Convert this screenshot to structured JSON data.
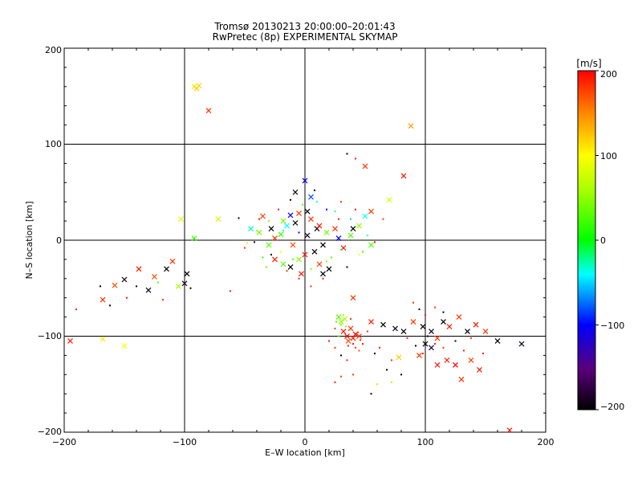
{
  "chart_data": {
    "type": "scatter",
    "title": "Tromsø 20130213 20:00:00–20:01:43",
    "subtitle": "RwPretec (8p) EXPERIMENTAL SKYMAP",
    "xlabel": "E–W location [km]",
    "ylabel": "N–S location [km]",
    "xlim": [
      -200,
      200
    ],
    "ylim": [
      -200,
      200
    ],
    "xticks": [
      "−200",
      "−100",
      "0",
      "100",
      "200"
    ],
    "yticks": [
      "−200",
      "−100",
      "0",
      "100",
      "200"
    ],
    "grid": true,
    "colorbar": {
      "unit": "[m/s]",
      "range": [
        -200,
        200
      ],
      "ticks": [
        "200",
        "100",
        "0",
        "−100",
        "−200"
      ]
    },
    "points": [
      [
        -92,
        160,
        110,
        "x"
      ],
      [
        -90,
        158,
        120,
        "x"
      ],
      [
        -88,
        161,
        115,
        "x"
      ],
      [
        -80,
        135,
        180,
        "x"
      ],
      [
        88,
        119,
        140,
        "x"
      ],
      [
        50,
        77,
        180,
        "x"
      ],
      [
        82,
        67,
        190,
        "x"
      ],
      [
        40,
        -60,
        180,
        "x"
      ],
      [
        78,
        -122,
        120,
        "x"
      ],
      [
        170,
        -198,
        190,
        "x"
      ],
      [
        -195,
        -105,
        190,
        "x"
      ],
      [
        -168,
        -62,
        180,
        "x"
      ],
      [
        -158,
        -47,
        170,
        "x"
      ],
      [
        -150,
        -41,
        -200,
        "x"
      ],
      [
        -138,
        -30,
        190,
        "x"
      ],
      [
        -130,
        -52,
        -190,
        "x"
      ],
      [
        -125,
        -38,
        170,
        "x"
      ],
      [
        -115,
        -30,
        -200,
        "x"
      ],
      [
        -110,
        -22,
        180,
        "x"
      ],
      [
        -100,
        -45,
        -180,
        "x"
      ],
      [
        -98,
        -35,
        -200,
        "x"
      ],
      [
        -105,
        -48,
        60,
        "x"
      ],
      [
        -103,
        22,
        90,
        "x"
      ],
      [
        -92,
        2,
        20,
        "x"
      ],
      [
        -72,
        22,
        80,
        "x"
      ],
      [
        -168,
        -103,
        110,
        "x"
      ],
      [
        -150,
        -110,
        100,
        "x"
      ],
      [
        -45,
        12,
        -30,
        "x"
      ],
      [
        -38,
        8,
        40,
        "x"
      ],
      [
        -30,
        -5,
        30,
        "x"
      ],
      [
        -25,
        2,
        180,
        "x"
      ],
      [
        -20,
        6,
        20,
        "x"
      ],
      [
        -15,
        15,
        -40,
        "x"
      ],
      [
        -10,
        -5,
        170,
        "x"
      ],
      [
        -8,
        18,
        -200,
        "x"
      ],
      [
        -5,
        -20,
        50,
        "x"
      ],
      [
        0,
        -15,
        190,
        "x"
      ],
      [
        2,
        5,
        -190,
        "x"
      ],
      [
        5,
        22,
        180,
        "x"
      ],
      [
        8,
        -12,
        -200,
        "x"
      ],
      [
        10,
        12,
        -190,
        "x"
      ],
      [
        12,
        -25,
        180,
        "x"
      ],
      [
        15,
        -5,
        -200,
        "x"
      ],
      [
        18,
        8,
        40,
        "x"
      ],
      [
        20,
        -30,
        -200,
        "x"
      ],
      [
        0,
        62,
        -100,
        "x"
      ],
      [
        5,
        45,
        -80,
        "x"
      ],
      [
        -8,
        50,
        -200,
        "x"
      ],
      [
        -5,
        28,
        180,
        "x"
      ],
      [
        2,
        30,
        -200,
        "x"
      ],
      [
        30,
        -85,
        50,
        "x"
      ],
      [
        32,
        -95,
        190,
        "x"
      ],
      [
        35,
        -100,
        200,
        "x"
      ],
      [
        38,
        -92,
        180,
        "x"
      ],
      [
        40,
        -102,
        190,
        "x"
      ],
      [
        28,
        -80,
        30,
        "x"
      ],
      [
        33,
        -82,
        60,
        "x"
      ],
      [
        36,
        -105,
        170,
        "x"
      ],
      [
        42,
        -98,
        200,
        "x"
      ],
      [
        45,
        -100,
        180,
        "x"
      ],
      [
        55,
        -85,
        190,
        "x"
      ],
      [
        65,
        -88,
        -200,
        "x"
      ],
      [
        75,
        -92,
        -190,
        "x"
      ],
      [
        82,
        -95,
        -200,
        "x"
      ],
      [
        90,
        -85,
        180,
        "x"
      ],
      [
        98,
        -90,
        -200,
        "x"
      ],
      [
        105,
        -95,
        -190,
        "x"
      ],
      [
        110,
        -102,
        180,
        "x"
      ],
      [
        115,
        -85,
        -200,
        "x"
      ],
      [
        120,
        -90,
        190,
        "x"
      ],
      [
        128,
        -80,
        180,
        "x"
      ],
      [
        135,
        -95,
        -200,
        "x"
      ],
      [
        142,
        -88,
        190,
        "x"
      ],
      [
        150,
        -95,
        180,
        "x"
      ],
      [
        160,
        -105,
        -200,
        "x"
      ],
      [
        180,
        -108,
        -190,
        "x"
      ],
      [
        100,
        -108,
        -200,
        "x"
      ],
      [
        105,
        -112,
        -180,
        "x"
      ],
      [
        118,
        -125,
        190,
        "x"
      ],
      [
        125,
        -130,
        200,
        "x"
      ],
      [
        138,
        -125,
        180,
        "x"
      ],
      [
        145,
        -135,
        190,
        "x"
      ],
      [
        110,
        -130,
        190,
        "x"
      ],
      [
        130,
        -145,
        180,
        "x"
      ],
      [
        95,
        -120,
        180,
        "x"
      ],
      [
        55,
        -5,
        30,
        "x"
      ],
      [
        45,
        15,
        50,
        "x"
      ],
      [
        50,
        25,
        -40,
        "x"
      ],
      [
        55,
        30,
        180,
        "x"
      ],
      [
        70,
        42,
        80,
        "x"
      ],
      [
        -25,
        -20,
        190,
        "x"
      ],
      [
        -18,
        -25,
        30,
        "x"
      ],
      [
        -12,
        -28,
        -200,
        "x"
      ],
      [
        -3,
        -35,
        190,
        "x"
      ],
      [
        15,
        -35,
        -200,
        "x"
      ],
      [
        -28,
        12,
        -200,
        "x"
      ],
      [
        -35,
        25,
        180,
        "x"
      ],
      [
        -18,
        20,
        40,
        "x"
      ],
      [
        -12,
        26,
        -100,
        "x"
      ],
      [
        12,
        15,
        190,
        "x"
      ],
      [
        25,
        12,
        180,
        "x"
      ],
      [
        28,
        2,
        -100,
        "x"
      ],
      [
        32,
        -8,
        190,
        "x"
      ],
      [
        38,
        5,
        30,
        "x"
      ],
      [
        40,
        12,
        -200,
        "x"
      ],
      [
        -190,
        -72,
        190,
        "d"
      ],
      [
        -170,
        -48,
        -200,
        "d"
      ],
      [
        -162,
        -68,
        -200,
        "d"
      ],
      [
        -148,
        -60,
        190,
        "d"
      ],
      [
        -140,
        -48,
        -190,
        "d"
      ],
      [
        -122,
        -44,
        30,
        "d"
      ],
      [
        -118,
        -62,
        180,
        "d"
      ],
      [
        -95,
        -50,
        -200,
        "d"
      ],
      [
        -62,
        -53,
        190,
        "d"
      ],
      [
        -55,
        23,
        -200,
        "d"
      ],
      [
        -50,
        -8,
        180,
        "d"
      ],
      [
        -42,
        -2,
        -190,
        "d"
      ],
      [
        -38,
        22,
        190,
        "d"
      ],
      [
        -32,
        -28,
        40,
        "d"
      ],
      [
        -28,
        -15,
        -200,
        "d"
      ],
      [
        -22,
        32,
        190,
        "d"
      ],
      [
        -15,
        -32,
        180,
        "d"
      ],
      [
        -12,
        42,
        -200,
        "d"
      ],
      [
        -5,
        -40,
        190,
        "d"
      ],
      [
        -2,
        37,
        30,
        "d"
      ],
      [
        5,
        -48,
        180,
        "d"
      ],
      [
        8,
        52,
        -200,
        "d"
      ],
      [
        15,
        -40,
        190,
        "d"
      ],
      [
        18,
        32,
        -100,
        "d"
      ],
      [
        22,
        -18,
        30,
        "d"
      ],
      [
        28,
        22,
        190,
        "d"
      ],
      [
        30,
        40,
        180,
        "d"
      ],
      [
        35,
        -28,
        -200,
        "d"
      ],
      [
        42,
        32,
        190,
        "d"
      ],
      [
        48,
        -12,
        20,
        "d"
      ],
      [
        52,
        5,
        -40,
        "d"
      ],
      [
        58,
        -2,
        190,
        "d"
      ],
      [
        65,
        22,
        180,
        "d"
      ],
      [
        35,
        90,
        -200,
        "d"
      ],
      [
        42,
        85,
        190,
        "d"
      ],
      [
        25,
        -112,
        180,
        "d"
      ],
      [
        30,
        -120,
        -200,
        "d"
      ],
      [
        35,
        -125,
        190,
        "d"
      ],
      [
        40,
        -140,
        180,
        "d"
      ],
      [
        45,
        -115,
        170,
        "d"
      ],
      [
        20,
        -105,
        190,
        "d"
      ],
      [
        25,
        -92,
        180,
        "d"
      ],
      [
        28,
        -100,
        30,
        "d"
      ],
      [
        48,
        -108,
        190,
        "d"
      ],
      [
        52,
        -95,
        180,
        "d"
      ],
      [
        58,
        -118,
        -200,
        "d"
      ],
      [
        62,
        -112,
        190,
        "d"
      ],
      [
        68,
        -135,
        -200,
        "d"
      ],
      [
        72,
        -125,
        180,
        "d"
      ],
      [
        80,
        -140,
        -190,
        "d"
      ],
      [
        85,
        -102,
        190,
        "d"
      ],
      [
        92,
        -110,
        -200,
        "d"
      ],
      [
        98,
        -118,
        180,
        "d"
      ],
      [
        102,
        -100,
        -190,
        "d"
      ],
      [
        108,
        -108,
        190,
        "d"
      ],
      [
        115,
        -112,
        180,
        "d"
      ],
      [
        125,
        -105,
        -200,
        "d"
      ],
      [
        132,
        -115,
        190,
        "d"
      ],
      [
        138,
        -102,
        180,
        "d"
      ],
      [
        148,
        -118,
        190,
        "d"
      ],
      [
        90,
        -65,
        180,
        "d"
      ],
      [
        95,
        -72,
        -200,
        "d"
      ],
      [
        100,
        -78,
        190,
        "d"
      ],
      [
        108,
        -70,
        180,
        "d"
      ],
      [
        115,
        -75,
        -200,
        "d"
      ],
      [
        -48,
        -3,
        110,
        "d"
      ],
      [
        -40,
        10,
        60,
        "d"
      ],
      [
        -35,
        -18,
        20,
        "d"
      ],
      [
        -30,
        20,
        50,
        "d"
      ],
      [
        -20,
        -12,
        100,
        "d"
      ],
      [
        -18,
        10,
        -30,
        "d"
      ],
      [
        -10,
        -20,
        30,
        "d"
      ],
      [
        -5,
        8,
        -100,
        "d"
      ],
      [
        5,
        -30,
        40,
        "d"
      ],
      [
        10,
        40,
        -40,
        "d"
      ],
      [
        18,
        -22,
        60,
        "d"
      ],
      [
        25,
        30,
        -30,
        "d"
      ],
      [
        30,
        -10,
        20,
        "d"
      ],
      [
        38,
        22,
        -50,
        "d"
      ],
      [
        45,
        -15,
        100,
        "d"
      ],
      [
        30,
        -88,
        40,
        "d"
      ],
      [
        32,
        -78,
        60,
        "d"
      ],
      [
        26,
        -85,
        20,
        "d"
      ],
      [
        34,
        -90,
        50,
        "d"
      ],
      [
        38,
        -82,
        180,
        "d"
      ],
      [
        40,
        -108,
        190,
        "d"
      ],
      [
        42,
        -112,
        180,
        "d"
      ],
      [
        36,
        -110,
        190,
        "d"
      ],
      [
        44,
        -96,
        180,
        "d"
      ],
      [
        46,
        -104,
        190,
        "d"
      ],
      [
        60,
        -150,
        60,
        "d"
      ],
      [
        55,
        -160,
        -200,
        "d"
      ],
      [
        30,
        -142,
        180,
        "d"
      ],
      [
        25,
        -148,
        190,
        "d"
      ],
      [
        72,
        -148,
        120,
        "d"
      ]
    ]
  }
}
